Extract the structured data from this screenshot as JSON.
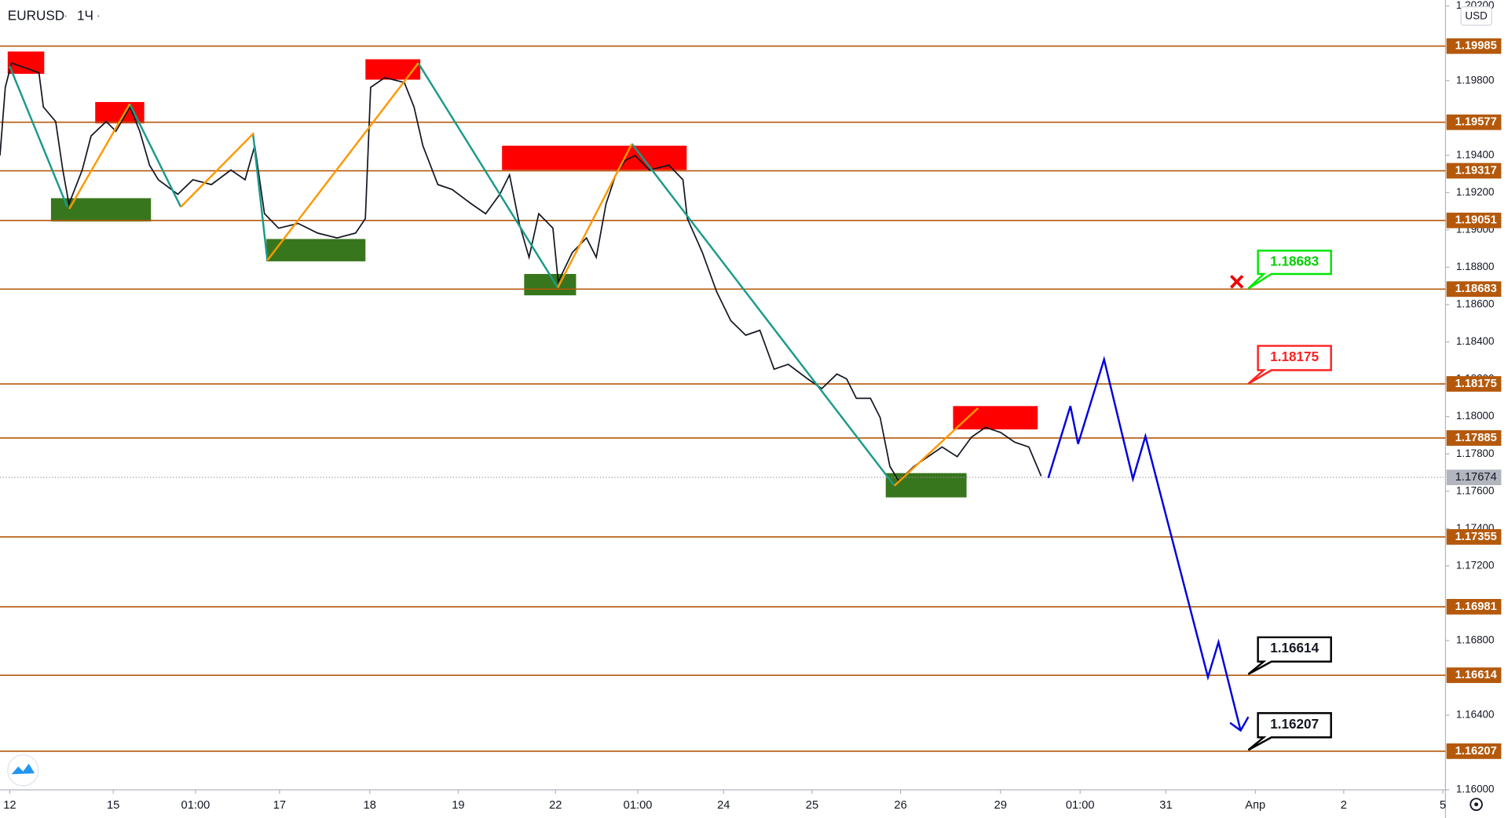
{
  "chart_data": {
    "type": "line",
    "title": "EURUSD",
    "interval": "1Ч",
    "currency": "USD",
    "color": "#131722",
    "x": [
      -0.11,
      -0.05,
      0.02,
      0.33,
      0.38,
      0.52,
      0.6,
      0.67,
      0.82,
      0.92,
      1.09,
      1.2,
      1.36,
      1.47,
      1.58,
      1.68,
      1.9,
      2.07,
      2.28,
      2.5,
      2.66,
      2.77,
      2.88,
      3.04,
      3.26,
      3.48,
      3.7,
      3.91,
      4.02,
      4.08,
      4.24,
      4.46,
      4.57,
      4.67,
      4.84,
      5,
      5.22,
      5.38,
      5.54,
      5.65,
      5.76,
      5.87,
      5.98,
      6.14,
      6.2,
      6.36,
      6.52,
      6.63,
      6.74,
      6.85,
      6.96,
      7.07,
      7.23,
      7.45,
      7.61,
      7.66,
      7.83,
      7.99,
      8.15,
      8.32,
      8.48,
      8.64,
      8.8,
      9.02,
      9.18,
      9.35,
      9.46,
      9.57,
      9.73,
      9.84,
      9.95,
      10.05,
      10.22,
      10.38,
      10.54,
      10.71,
      10.87,
      11.03,
      11.2,
      11.36,
      11.52,
      11.66
    ],
    "values": [
      1.19399,
      1.19764,
      1.19894,
      1.19842,
      1.19659,
      1.19581,
      1.19321,
      1.19139,
      1.19321,
      1.19503,
      1.19581,
      1.19529,
      1.19659,
      1.19529,
      1.19347,
      1.19269,
      1.19191,
      1.19269,
      1.19243,
      1.19321,
      1.19269,
      1.19451,
      1.19087,
      1.19009,
      1.19035,
      1.18983,
      1.18957,
      1.18983,
      1.19061,
      1.19764,
      1.19816,
      1.1979,
      1.19659,
      1.19451,
      1.19243,
      1.19217,
      1.19139,
      1.19087,
      1.19191,
      1.19295,
      1.19035,
      1.18853,
      1.19087,
      1.19009,
      1.18722,
      1.18879,
      1.18957,
      1.18853,
      1.19139,
      1.19295,
      1.19373,
      1.19399,
      1.19321,
      1.19347,
      1.19269,
      1.19061,
      1.18879,
      1.1867,
      1.18514,
      1.18436,
      1.18462,
      1.18254,
      1.1828,
      1.18202,
      1.1815,
      1.18228,
      1.18202,
      1.18098,
      1.18098,
      1.17994,
      1.17733,
      1.17655,
      1.17733,
      1.17785,
      1.17837,
      1.17785,
      1.17889,
      1.17942,
      1.17915,
      1.17863,
      1.17837,
      1.17681
    ],
    "xlim": [
      -0.11,
      16.23
    ],
    "xticks": [
      {
        "value": 0,
        "label": "12"
      },
      {
        "value": 1.17,
        "label": "15"
      },
      {
        "value": 2.1,
        "label": "01:00"
      },
      {
        "value": 3.05,
        "label": "17"
      },
      {
        "value": 4.07,
        "label": "18"
      },
      {
        "value": 5.07,
        "label": "19"
      },
      {
        "value": 6.17,
        "label": "22"
      },
      {
        "value": 7.1,
        "label": "01:00"
      },
      {
        "value": 8.07,
        "label": "24"
      },
      {
        "value": 9.07,
        "label": "25"
      },
      {
        "value": 10.07,
        "label": "26"
      },
      {
        "value": 11.2,
        "label": "29"
      },
      {
        "value": 12.1,
        "label": "01:00"
      },
      {
        "value": 13.07,
        "label": "31"
      },
      {
        "value": 14.08,
        "label": "Апр"
      },
      {
        "value": 15.08,
        "label": "2"
      },
      {
        "value": 16.2,
        "label": "5"
      }
    ],
    "ylim": [
      1.16,
      1.20232
    ],
    "yticks": [
      {
        "value": 1.202,
        "label": "1.20200"
      },
      {
        "value": 1.198,
        "label": "1.19800"
      },
      {
        "value": 1.194,
        "label": "1.19400"
      },
      {
        "value": 1.192,
        "label": "1.19200"
      },
      {
        "value": 1.19,
        "label": "1.19000"
      },
      {
        "value": 1.188,
        "label": "1.18800"
      },
      {
        "value": 1.186,
        "label": "1.18600"
      },
      {
        "value": 1.184,
        "label": "1.18400"
      },
      {
        "value": 1.182,
        "label": "1.18200"
      },
      {
        "value": 1.18,
        "label": "1.18000"
      },
      {
        "value": 1.178,
        "label": "1.17800"
      },
      {
        "value": 1.176,
        "label": "1.17600"
      },
      {
        "value": 1.174,
        "label": "1.17400"
      },
      {
        "value": 1.172,
        "label": "1.17200"
      },
      {
        "value": 1.168,
        "label": "1.16800"
      },
      {
        "value": 1.164,
        "label": "1.16400"
      },
      {
        "value": 1.16,
        "label": "1.16000"
      }
    ],
    "levels": [
      {
        "value": 1.19985,
        "label": "1.19985"
      },
      {
        "value": 1.19577,
        "label": "1.19577"
      },
      {
        "value": 1.19317,
        "label": "1.19317"
      },
      {
        "value": 1.19051,
        "label": "1.19051"
      },
      {
        "value": 1.18683,
        "label": "1.18683"
      },
      {
        "value": 1.18175,
        "label": "1.18175"
      },
      {
        "value": 1.17885,
        "label": "1.17885"
      },
      {
        "value": 1.17355,
        "label": "1.17355"
      },
      {
        "value": 1.16981,
        "label": "1.16981"
      },
      {
        "value": 1.16614,
        "label": "1.16614"
      },
      {
        "value": 1.16207,
        "label": "1.16207"
      }
    ],
    "level_color": "#b4590b",
    "last_price": {
      "value": 1.17674,
      "label": "1.17674"
    }
  }
}
